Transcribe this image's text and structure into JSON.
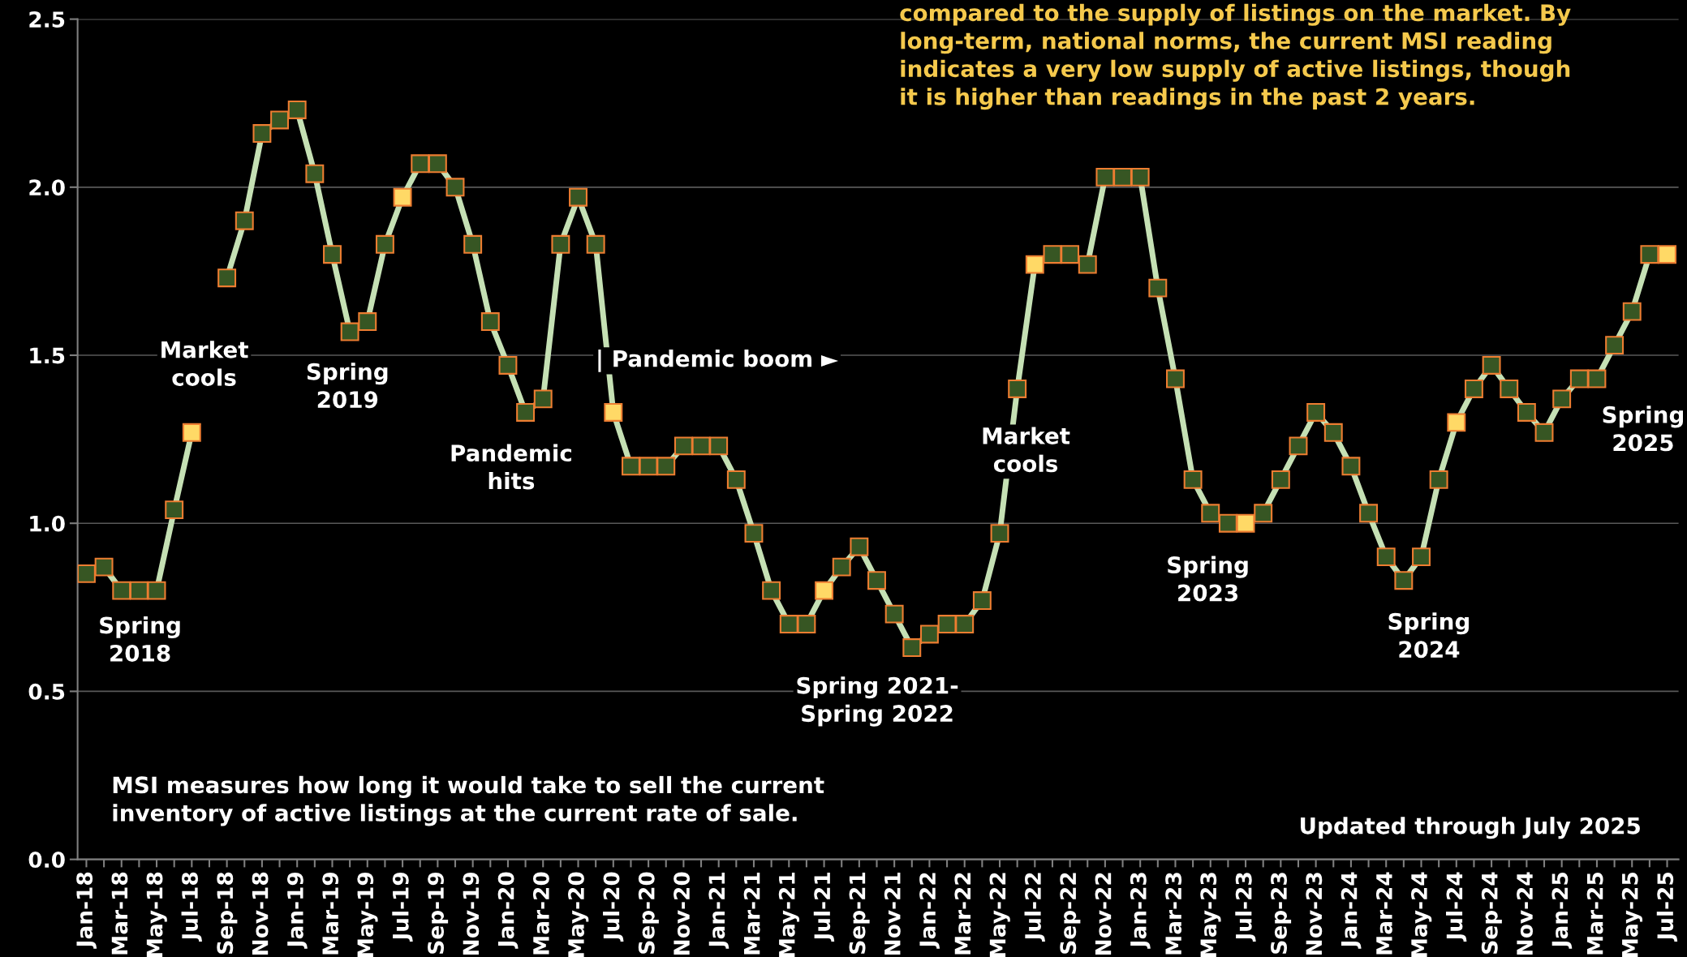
{
  "chart_data": {
    "type": "line",
    "categories": [
      "Jan-18",
      null,
      "Mar-18",
      null,
      "May-18",
      null,
      "Jul-18",
      null,
      "Sep-18",
      null,
      "Nov-18",
      null,
      "Jan-19",
      null,
      "Mar-19",
      null,
      "May-19",
      null,
      "Jul-19",
      null,
      "Sep-19",
      null,
      "Nov-19",
      null,
      "Jan-20",
      null,
      "Mar-20",
      null,
      "May-20",
      null,
      "Jul-20",
      null,
      "Sep-20",
      null,
      "Nov-20",
      null,
      "Jan-21",
      null,
      "Mar-21",
      null,
      "May-21",
      null,
      "Jul-21",
      null,
      "Sep-21",
      null,
      "Nov-21",
      null,
      "Jan-22",
      null,
      "Mar-22",
      null,
      "May-22",
      null,
      "Jul-22",
      null,
      "Sep-22",
      null,
      "Nov-22",
      null,
      "Jan-23",
      null,
      "Mar-23",
      null,
      "May-23",
      null,
      "Jul-23",
      null,
      "Sep-23",
      null,
      "Nov-23",
      null,
      "Jan-24",
      null,
      "Mar-24",
      null,
      "May-24",
      null,
      "Jul-24",
      null,
      "Sep-24",
      null,
      "Nov-24",
      null,
      "Jan-25",
      null,
      "Mar-25",
      null,
      "May-25",
      null,
      "Jul-25"
    ],
    "series": [
      {
        "color": "#c5e0b4",
        "values": [
          0.85,
          0.87,
          0.8,
          0.8,
          0.8,
          1.04,
          1.27,
          null,
          1.73,
          1.9,
          2.16,
          2.2,
          2.23,
          2.04,
          1.8,
          1.57,
          1.6,
          1.83,
          1.97,
          2.07,
          2.07,
          2.0,
          1.83,
          1.6,
          1.47,
          1.33,
          1.37,
          1.83,
          1.97,
          1.83,
          1.33,
          1.17,
          1.17,
          1.17,
          1.23,
          1.23,
          1.23,
          1.13,
          0.97,
          0.8,
          0.7,
          0.7,
          0.8,
          0.87,
          0.93,
          0.83,
          0.73,
          0.63,
          0.67,
          0.7,
          0.7,
          0.77,
          0.97,
          1.4,
          1.77,
          1.8,
          1.8,
          1.77,
          2.03,
          2.03,
          2.03,
          1.7,
          1.43,
          1.13,
          1.03,
          1.0,
          1.0,
          1.03,
          1.13,
          1.23,
          1.33,
          1.27,
          1.17,
          1.03,
          0.9,
          0.83,
          0.9,
          1.13,
          1.3,
          1.4,
          1.47,
          1.4,
          1.33,
          1.27,
          1.37,
          1.43,
          1.43,
          1.53,
          1.63,
          1.8,
          1.8
        ],
        "colors": [
          "#375623",
          "#375623",
          "#375623",
          "#375623",
          "#375623",
          "#375623",
          "#ffd966",
          "#375623",
          "#375623",
          "#375623",
          "#375623",
          "#375623",
          "#375623",
          "#375623",
          "#375623",
          "#375623",
          "#375623",
          "#375623",
          "#ffd966",
          "#375623",
          "#375623",
          "#375623",
          "#375623",
          "#375623",
          "#375623",
          "#375623",
          "#375623",
          "#375623",
          "#375623",
          "#375623",
          "#ffd966",
          "#375623",
          "#375623",
          "#375623",
          "#375623",
          "#375623",
          "#375623",
          "#375623",
          "#375623",
          "#375623",
          "#375623",
          "#375623",
          "#ffd966",
          "#375623",
          "#375623",
          "#375623",
          "#375623",
          "#375623",
          "#375623",
          "#375623",
          "#375623",
          "#375623",
          "#375623",
          "#375623",
          "#ffd966",
          "#375623",
          "#375623",
          "#375623",
          "#375623",
          "#375623",
          "#375623",
          "#375623",
          "#375623",
          "#375623",
          "#375623",
          "#375623",
          "#ffd966",
          "#375623",
          "#375623",
          "#375623",
          "#375623",
          "#375623",
          "#375623",
          "#375623",
          "#375623",
          "#375623",
          "#375623",
          "#375623",
          "#ffd966",
          "#375623",
          "#375623",
          "#375623",
          "#375623",
          "#375623",
          "#375623",
          "#375623",
          "#375623",
          "#375623",
          "#375623",
          "#375623",
          "#ffd966"
        ]
      }
    ],
    "ylim": [
      0,
      2.5
    ],
    "yticks": [
      {
        "value": 0,
        "label": "0.0"
      },
      {
        "value": 0.5,
        "label": "0.5"
      },
      {
        "value": 1,
        "label": "1.0"
      },
      {
        "value": 1.5,
        "label": "1.5"
      },
      {
        "value": 2,
        "label": "2.0"
      },
      {
        "value": 2.5,
        "label": "2.5"
      }
    ],
    "grid": "y",
    "marker": "square",
    "line_style": "solid",
    "annotations": [
      "compared to the supply of listings on the market. By\nlong-term, national norms, the current MSI reading\nindicates a very low supply of active listings, though\nit is higher than readings in the past 2 years.",
      "Spring\n2018",
      "Market\ncools",
      "Spring\n2019",
      "Pandemic\nhits",
      "| Pandemic boom ►",
      "Spring 2021-\nSpring 2022",
      "Market\ncools",
      "Spring\n2023",
      "Spring\n2024",
      "Spring\n2025",
      "MSI measures how long it would take to sell the current\ninventory of active listings at the current rate of sale.",
      "Updated through July 2025"
    ]
  }
}
